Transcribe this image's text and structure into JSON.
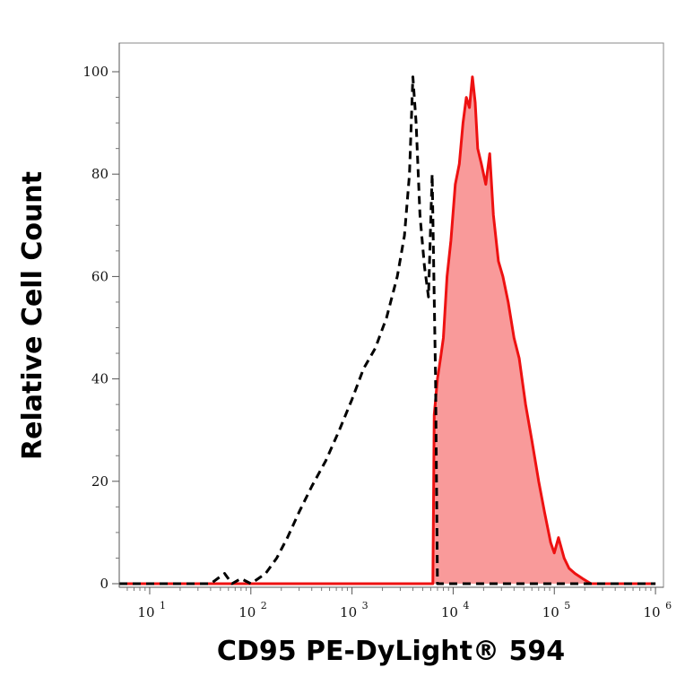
{
  "chart_data": {
    "type": "area",
    "title": "",
    "xlabel": "CD95 PE-DyLight® 594",
    "ylabel": "Relative Cell Count",
    "x_scale": "log",
    "xlim": [
      5,
      1200000
    ],
    "ylim": [
      0,
      100
    ],
    "x_ticks": [
      {
        "value": 10,
        "base": "10",
        "exp": "1"
      },
      {
        "value": 100,
        "base": "10",
        "exp": "2"
      },
      {
        "value": 1000,
        "base": "10",
        "exp": "3"
      },
      {
        "value": 10000,
        "base": "10",
        "exp": "4"
      },
      {
        "value": 100000,
        "base": "10",
        "exp": "5"
      },
      {
        "value": 1000000,
        "base": "10",
        "exp": "6"
      }
    ],
    "y_ticks": [
      0,
      20,
      40,
      60,
      80,
      100
    ],
    "grid": false,
    "series": [
      {
        "style": "dashed",
        "color": "#000000",
        "fill": "none",
        "x": [
          5,
          40,
          55,
          65,
          80,
          100,
          140,
          180,
          230,
          300,
          400,
          550,
          750,
          1000,
          1300,
          1700,
          2200,
          2800,
          3300,
          3700,
          4000,
          4300,
          4700,
          5200,
          5700,
          6200,
          6700,
          7000,
          9000,
          100000,
          1000000
        ],
        "y": [
          0,
          0,
          2,
          0,
          1,
          0,
          2,
          5,
          9,
          14,
          19,
          24,
          30,
          36,
          42,
          46,
          52,
          60,
          68,
          80,
          99,
          90,
          72,
          62,
          56,
          80,
          40,
          0,
          0,
          0,
          0
        ]
      },
      {
        "style": "solid",
        "color": "#ee1111",
        "fill": "#f99a9a",
        "x": [
          5,
          6300,
          6500,
          7000,
          7500,
          8000,
          8700,
          9500,
          10500,
          11500,
          12500,
          13500,
          14500,
          15500,
          16500,
          17500,
          19000,
          21000,
          23000,
          25000,
          28000,
          31000,
          35000,
          40000,
          45000,
          52000,
          60000,
          70000,
          80000,
          92000,
          100000,
          110000,
          125000,
          140000,
          160000,
          190000,
          230000,
          1000000
        ],
        "y": [
          0,
          0,
          33,
          40,
          44,
          48,
          60,
          67,
          78,
          82,
          90,
          95,
          93,
          99,
          94,
          85,
          82,
          78,
          84,
          72,
          63,
          60,
          55,
          48,
          44,
          35,
          28,
          20,
          14,
          8,
          6,
          9,
          5,
          3,
          2,
          1,
          0,
          0
        ]
      }
    ]
  }
}
